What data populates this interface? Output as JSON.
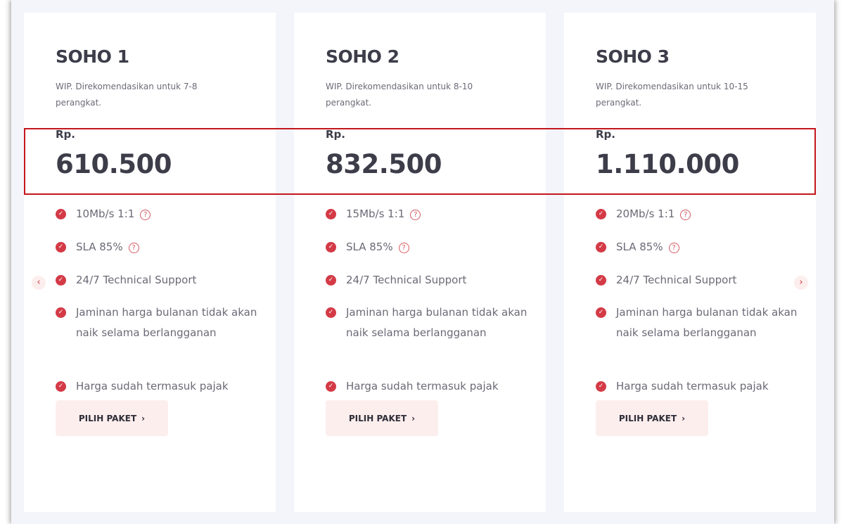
{
  "plans": [
    {
      "name": "SOHO 1",
      "description": "WIP. Direkomendasikan untuk 7-8 perangkat.",
      "currency": "Rp.",
      "price": "610.500",
      "features": [
        "10Mb/s 1:1",
        "SLA 85%",
        "24/7 Technical Support",
        "Jaminan harga bulanan tidak akan naik selama berlangganan",
        "Harga sudah termasuk pajak"
      ],
      "button": "PILIH PAKET"
    },
    {
      "name": "SOHO 2",
      "description": "WIP. Direkomendasikan untuk 8-10 perangkat.",
      "currency": "Rp.",
      "price": "832.500",
      "features": [
        "15Mb/s 1:1",
        "SLA 85%",
        "24/7 Technical Support",
        "Jaminan harga bulanan tidak akan naik selama berlangganan",
        "Harga sudah termasuk pajak"
      ],
      "button": "PILIH PAKET"
    },
    {
      "name": "SOHO 3",
      "description": "WIP. Direkomendasikan untuk 10-15 perangkat.",
      "currency": "Rp.",
      "price": "1.110.000",
      "features": [
        "20Mb/s 1:1",
        "SLA 85%",
        "24/7 Technical Support",
        "Jaminan harga bulanan tidak akan naik selama berlangganan",
        "Harga sudah termasuk pajak"
      ],
      "button": "PILIH PAKET"
    }
  ],
  "icons": {
    "check": "check-circle-icon",
    "help": "question-circle-icon",
    "prev": "chevron-left-icon",
    "next": "chevron-right-icon"
  },
  "colors": {
    "accent": "#d43a46",
    "highlight": "#c4161c",
    "button_bg": "#fdeeee"
  }
}
